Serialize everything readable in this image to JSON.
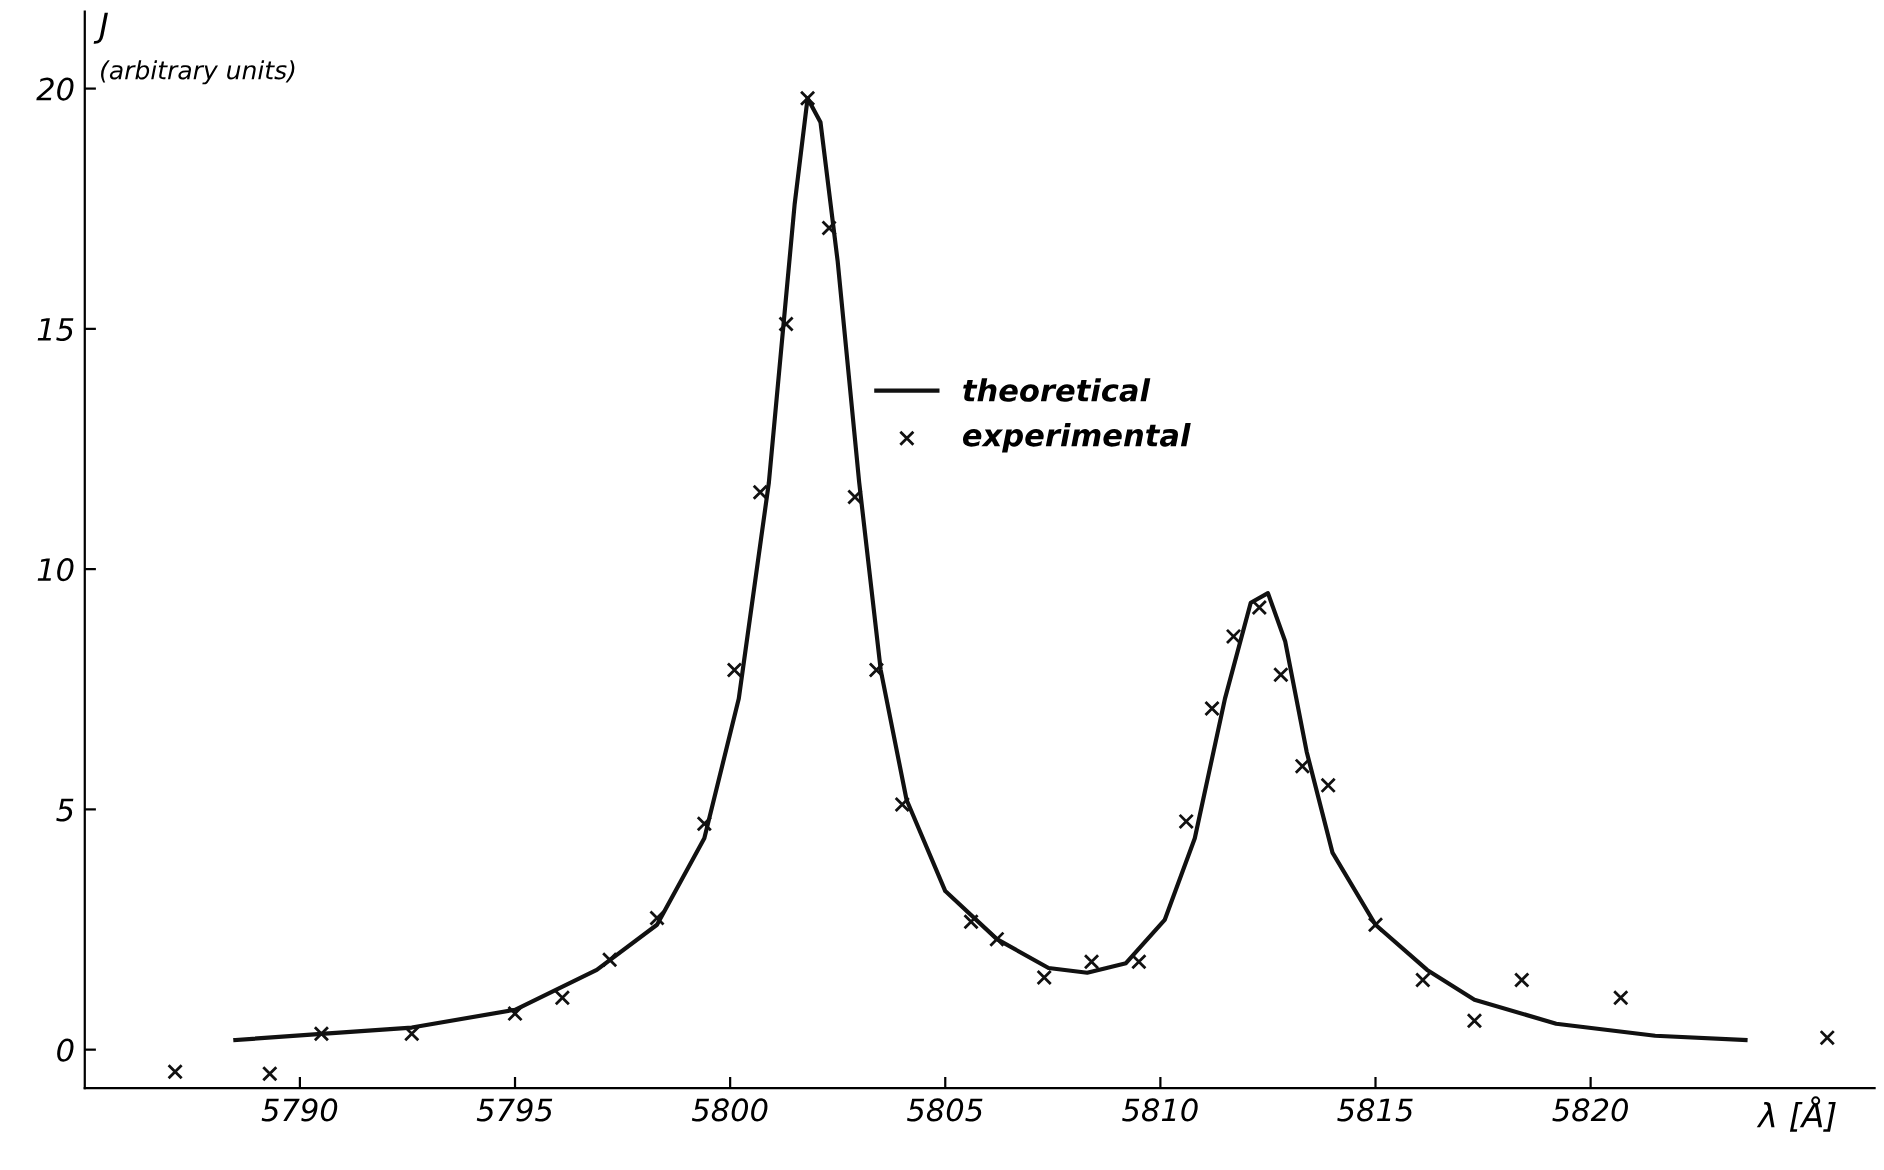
{
  "chart_data": {
    "type": "line",
    "ylabel": "J",
    "xlabel": "λ [Å]",
    "annotations": [
      "(arbitrary units)"
    ],
    "xlim": [
      5785,
      5826.6
    ],
    "ylim": [
      -0.8,
      21.6
    ],
    "xticks": [
      5790,
      5795,
      5800,
      5805,
      5810,
      5815,
      5820
    ],
    "yticks": [
      0,
      5,
      10,
      15,
      20
    ],
    "grid": false,
    "legend": "center",
    "series": [
      {
        "name": "theoretical",
        "color": "#111111",
        "marker": "none",
        "line_style": "solid",
        "x": [
          5788.5,
          5790.5,
          5792.6,
          5795.0,
          5796.9,
          5798.3,
          5799.4,
          5800.2,
          5800.9,
          5801.5,
          5801.8,
          5802.1,
          5802.5,
          5803.0,
          5803.5,
          5804.1,
          5805.0,
          5806.2,
          5807.4,
          5808.3,
          5809.2,
          5810.1,
          5810.8,
          5811.5,
          5812.1,
          5812.5,
          5812.9,
          5813.4,
          5814.0,
          5815.0,
          5816.2,
          5817.3,
          5819.2,
          5821.5,
          5823.6
        ],
        "values": [
          0.2,
          0.33,
          0.46,
          0.83,
          1.66,
          2.6,
          4.4,
          7.3,
          11.8,
          17.6,
          19.8,
          19.3,
          16.4,
          11.8,
          7.9,
          5.2,
          3.3,
          2.3,
          1.7,
          1.6,
          1.8,
          2.7,
          4.4,
          7.3,
          9.3,
          9.5,
          8.5,
          6.2,
          4.1,
          2.6,
          1.66,
          1.04,
          0.54,
          0.29,
          0.2
        ]
      },
      {
        "name": "experimental",
        "type": "scatter",
        "color": "#111111",
        "marker": "cross",
        "x": [
          5787.1,
          5789.3,
          5790.5,
          5792.6,
          5795.0,
          5796.1,
          5797.2,
          5798.3,
          5799.4,
          5800.1,
          5800.7,
          5801.3,
          5801.8,
          5802.3,
          5802.9,
          5803.4,
          5804.0,
          5805.6,
          5806.2,
          5807.3,
          5808.4,
          5809.5,
          5810.6,
          5811.2,
          5811.7,
          5812.3,
          5812.8,
          5813.3,
          5813.9,
          5815.0,
          5816.1,
          5817.3,
          5818.4,
          5820.7,
          5825.5
        ],
        "values": [
          -0.46,
          -0.5,
          0.33,
          0.33,
          0.75,
          1.08,
          1.87,
          2.74,
          4.7,
          7.9,
          11.6,
          15.1,
          19.8,
          17.1,
          11.5,
          7.9,
          5.1,
          2.66,
          2.3,
          1.5,
          1.83,
          1.83,
          4.75,
          7.1,
          8.6,
          9.2,
          7.8,
          5.9,
          5.5,
          2.6,
          1.45,
          0.6,
          1.45,
          1.08,
          0.25
        ]
      }
    ]
  }
}
